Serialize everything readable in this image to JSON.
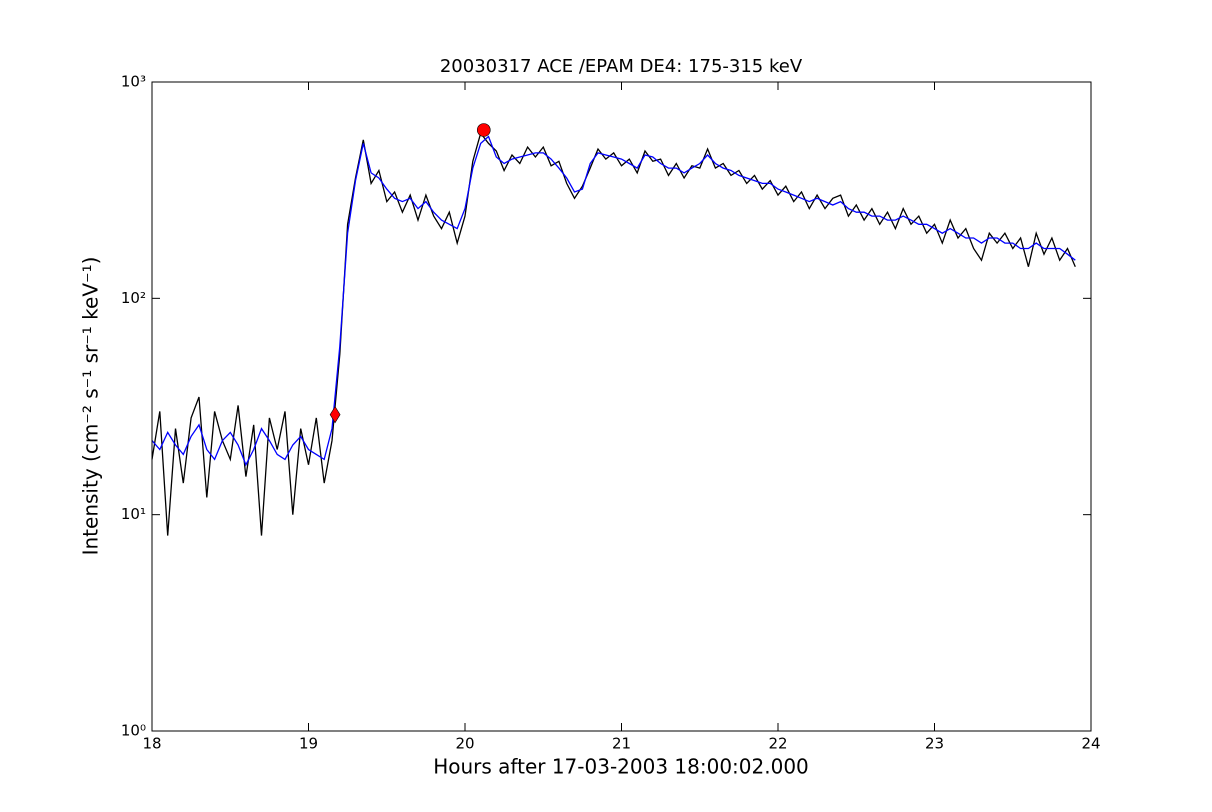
{
  "chart_data": {
    "type": "line",
    "title": "20030317 ACE /EPAM DE4: 175-315 keV",
    "x_label": "Hours after 17-03-2003 18:00:02.000",
    "y_label": "Intensity (cm⁻² s⁻¹ sr⁻¹ keV⁻¹)",
    "log_y": true,
    "xlim": [
      18,
      24
    ],
    "xticks": [
      18,
      19,
      20,
      21,
      22,
      23,
      24
    ],
    "ylim": [
      1,
      1000
    ],
    "yticks": [
      {
        "value": 1,
        "label": "10⁰"
      },
      {
        "value": 10,
        "label": "10¹"
      },
      {
        "value": 100,
        "label": "10²"
      },
      {
        "value": 1000,
        "label": "10³"
      }
    ],
    "x": [
      18.0,
      18.05,
      18.1,
      18.15,
      18.2,
      18.25,
      18.3,
      18.35,
      18.4,
      18.45,
      18.5,
      18.55,
      18.6,
      18.65,
      18.7,
      18.75,
      18.8,
      18.85,
      18.9,
      18.95,
      19.0,
      19.05,
      19.1,
      19.15,
      19.2,
      19.25,
      19.3,
      19.35,
      19.4,
      19.45,
      19.5,
      19.55,
      19.6,
      19.65,
      19.7,
      19.75,
      19.8,
      19.85,
      19.9,
      19.95,
      20.0,
      20.05,
      20.1,
      20.15,
      20.2,
      20.25,
      20.3,
      20.35,
      20.4,
      20.45,
      20.5,
      20.55,
      20.6,
      20.65,
      20.7,
      20.75,
      20.8,
      20.85,
      20.9,
      20.95,
      21.0,
      21.05,
      21.1,
      21.15,
      21.2,
      21.25,
      21.3,
      21.35,
      21.4,
      21.45,
      21.5,
      21.55,
      21.6,
      21.65,
      21.7,
      21.75,
      21.8,
      21.85,
      21.9,
      21.95,
      22.0,
      22.05,
      22.1,
      22.15,
      22.2,
      22.25,
      22.3,
      22.35,
      22.4,
      22.45,
      22.5,
      22.55,
      22.6,
      22.65,
      22.7,
      22.75,
      22.8,
      22.85,
      22.9,
      22.95,
      23.0,
      23.05,
      23.1,
      23.15,
      23.2,
      23.25,
      23.3,
      23.35,
      23.4,
      23.45,
      23.5,
      23.55,
      23.6,
      23.65,
      23.7,
      23.75,
      23.8,
      23.85,
      23.9
    ],
    "series": [
      {
        "color": "#000000",
        "values": [
          18,
          30,
          8,
          25,
          14,
          28,
          35,
          12,
          30,
          22,
          18,
          32,
          15,
          26,
          8,
          28,
          20,
          30,
          10,
          25,
          17,
          28,
          14,
          22,
          55,
          220,
          360,
          540,
          340,
          390,
          280,
          310,
          250,
          300,
          230,
          300,
          240,
          210,
          250,
          180,
          240,
          430,
          580,
          520,
          480,
          390,
          460,
          420,
          500,
          450,
          500,
          410,
          430,
          340,
          290,
          330,
          400,
          490,
          440,
          470,
          410,
          440,
          380,
          480,
          430,
          440,
          370,
          420,
          360,
          410,
          400,
          490,
          400,
          420,
          370,
          390,
          340,
          370,
          320,
          350,
          300,
          330,
          280,
          310,
          260,
          300,
          260,
          290,
          300,
          240,
          270,
          230,
          260,
          220,
          250,
          210,
          260,
          220,
          240,
          200,
          220,
          180,
          230,
          190,
          210,
          170,
          150,
          200,
          180,
          200,
          170,
          190,
          140,
          200,
          160,
          190,
          150,
          170,
          140
        ]
      },
      {
        "color": "#0000ff",
        "values": [
          22,
          20,
          24,
          21,
          19,
          23,
          26,
          20,
          18,
          22,
          24,
          21,
          17,
          20,
          25,
          22,
          19,
          18,
          21,
          23,
          20,
          19,
          18,
          25,
          60,
          200,
          350,
          520,
          380,
          360,
          320,
          290,
          280,
          290,
          260,
          280,
          250,
          230,
          220,
          210,
          260,
          400,
          520,
          560,
          450,
          420,
          440,
          450,
          460,
          470,
          470,
          440,
          400,
          360,
          310,
          320,
          420,
          470,
          460,
          450,
          440,
          420,
          400,
          460,
          450,
          420,
          400,
          400,
          380,
          400,
          420,
          460,
          420,
          400,
          390,
          370,
          360,
          350,
          340,
          340,
          320,
          310,
          300,
          290,
          280,
          290,
          280,
          270,
          280,
          260,
          250,
          250,
          240,
          240,
          230,
          230,
          240,
          230,
          220,
          220,
          210,
          200,
          210,
          200,
          190,
          190,
          180,
          190,
          190,
          180,
          180,
          170,
          170,
          180,
          170,
          170,
          170,
          160,
          150
        ]
      }
    ],
    "points": [
      {
        "x": 19.17,
        "y": 29,
        "marker": "diamond",
        "color": "#ff0000"
      },
      {
        "x": 20.12,
        "y": 600,
        "marker": "circle",
        "color": "#ff0000"
      }
    ]
  }
}
